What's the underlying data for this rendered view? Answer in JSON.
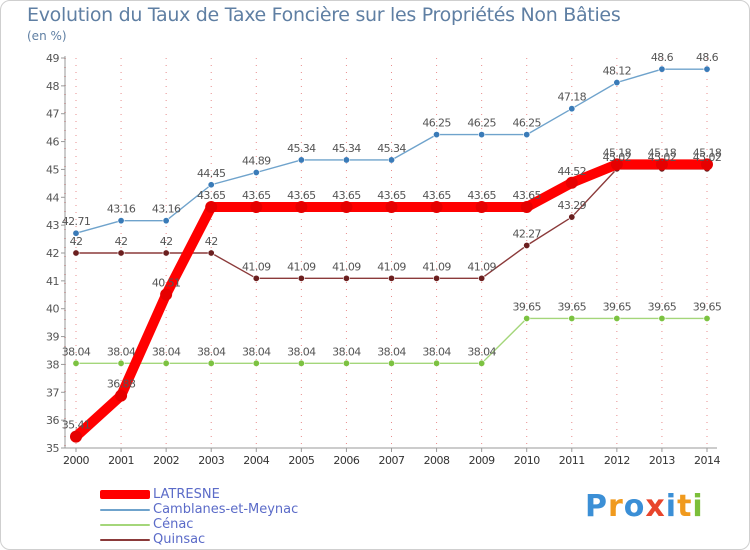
{
  "chart_data": {
    "type": "line",
    "title": "Evolution du Taux de Taxe Foncière sur les Propriétés Non Bâties",
    "subtitle": "(en %)",
    "x": [
      "2000",
      "2001",
      "2002",
      "2003",
      "2004",
      "2005",
      "2006",
      "2007",
      "2008",
      "2009",
      "2010",
      "2011",
      "2012",
      "2013",
      "2014"
    ],
    "ylim": [
      35,
      49
    ],
    "yticks": [
      35,
      36,
      37,
      38,
      39,
      40,
      41,
      42,
      43,
      44,
      45,
      46,
      47,
      48,
      49
    ],
    "series": [
      {
        "name": "Camblanes-et-Meynac",
        "color": "#6fa3cc",
        "point_color": "#3a7bb8",
        "thick": false,
        "values": [
          42.71,
          43.16,
          43.16,
          44.45,
          44.89,
          45.34,
          45.34,
          45.34,
          46.25,
          46.25,
          46.25,
          47.18,
          48.12,
          48.6,
          48.6
        ],
        "labels": [
          "42.71",
          "43.16",
          "43.16",
          "44.45",
          "44.89",
          "45.34",
          "45.34",
          "45.34",
          "46.25",
          "46.25",
          "46.25",
          "47.18",
          "48.12",
          "48.6",
          "48.6"
        ]
      },
      {
        "name": "Quinsac",
        "color": "#8b3a3a",
        "point_color": "#6b1f1f",
        "thick": false,
        "values": [
          42,
          42,
          42,
          42,
          41.09,
          41.09,
          41.09,
          41.09,
          41.09,
          41.09,
          42.27,
          43.29,
          45.02,
          45.02,
          45.02
        ],
        "labels": [
          "42",
          "42",
          "42",
          "42",
          "41.09",
          "41.09",
          "41.09",
          "41.09",
          "41.09",
          "41.09",
          "42.27",
          "43.29",
          "45.02",
          "45.02",
          "45.02"
        ]
      },
      {
        "name": "Cénac",
        "color": "#a4d67a",
        "point_color": "#7cc241",
        "thick": false,
        "values": [
          38.04,
          38.04,
          38.04,
          38.04,
          38.04,
          38.04,
          38.04,
          38.04,
          38.04,
          38.04,
          39.65,
          39.65,
          39.65,
          39.65,
          39.65
        ],
        "labels": [
          "38.04",
          "38.04",
          "38.04",
          "38.04",
          "38.04",
          "38.04",
          "38.04",
          "38.04",
          "38.04",
          "38.04",
          "39.65",
          "39.65",
          "39.65",
          "39.65",
          "39.65"
        ]
      },
      {
        "name": "LATRESNE",
        "color": "#ff0000",
        "point_color": "#e60000",
        "thick": true,
        "values": [
          35.41,
          36.88,
          40.51,
          43.65,
          43.65,
          43.65,
          43.65,
          43.65,
          43.65,
          43.65,
          43.65,
          44.52,
          45.18,
          45.18,
          45.18
        ],
        "labels": [
          "35.41",
          "36.88",
          "40.51",
          "43.65",
          "43.65",
          "43.65",
          "43.65",
          "43.65",
          "43.65",
          "43.65",
          "43.65",
          "44.52",
          "45.18",
          "45.18",
          "45.18"
        ]
      }
    ]
  },
  "legend": [
    {
      "label": "LATRESNE",
      "color": "#ff0000",
      "thick": true
    },
    {
      "label": "Camblanes-et-Meynac",
      "color": "#6fa3cc",
      "thick": false
    },
    {
      "label": "Cénac",
      "color": "#a4d67a",
      "thick": false
    },
    {
      "label": "Quinsac",
      "color": "#8b3a3a",
      "thick": false
    }
  ],
  "logo": {
    "text": "Proxiti",
    "letters": [
      "P",
      "r",
      "o",
      "x",
      "i",
      "t",
      "i"
    ],
    "colors": [
      "#3b8fd6",
      "#f09a1e",
      "#3b8fd6",
      "#e8452c",
      "#3b8fd6",
      "#f09a1e",
      "#7cbf3a"
    ]
  }
}
